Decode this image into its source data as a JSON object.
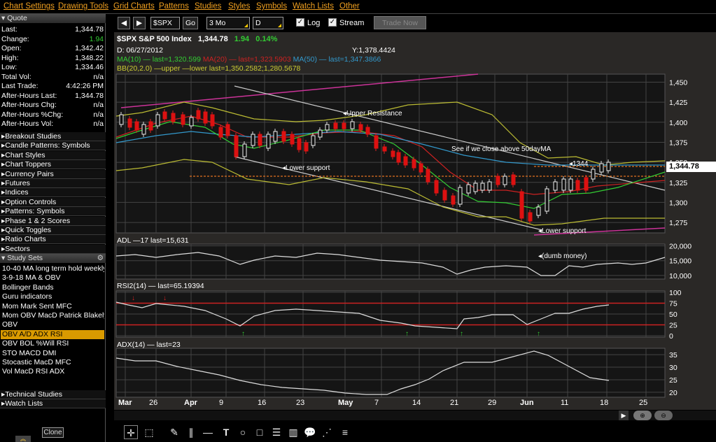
{
  "menu": [
    "Chart Settings",
    "Drawing Tools",
    "Grid Charts",
    "Patterns",
    "Studies",
    "Styles",
    "Symbols",
    "Watch Lists",
    "Other"
  ],
  "quote": {
    "header": "Quote",
    "rows": [
      {
        "label": "Last:",
        "value": "1,344.78"
      },
      {
        "label": "Change:",
        "value": "1.94"
      },
      {
        "label": "Open:",
        "value": "1,342.42"
      },
      {
        "label": "High:",
        "value": "1,348.22"
      },
      {
        "label": "Low:",
        "value": "1,334.46"
      },
      {
        "label": "Total Vol:",
        "value": "n/a"
      },
      {
        "label": "Last Trade:",
        "value": "4:42:26 PM"
      },
      {
        "label": "After-Hours Last:",
        "value": "1,344.78"
      },
      {
        "label": "After-Hours Chg:",
        "value": "n/a"
      },
      {
        "label": "After-Hours %Chg:",
        "value": "n/a"
      },
      {
        "label": "After-Hours Vol:",
        "value": "n/a"
      }
    ],
    "change_color": "#33cc33"
  },
  "collapsed_sections": [
    "Breakout Studies",
    "Candle Patterns: Symbols",
    "Chart Styles",
    "Chart Toppers",
    "Currency Pairs",
    "Futures",
    "Indices",
    "Option Controls",
    "Patterns: Symbols",
    "Phase 1 & 2 Scores",
    "Quick Toggles",
    "Ratio Charts",
    "Sectors"
  ],
  "study_sets": {
    "header": "Study Sets",
    "items": [
      "10-40 MA long term hold weekly",
      "3-9-18 MA & OBV",
      "Bollinger Bands",
      "Guru indicators",
      "Mom Mark Sent MFC",
      "Mom OBV MacD Patrick Blakely",
      "OBV",
      "OBV  A/D ADX RSI",
      "OBV BOL %Will  RSI",
      "STO MACD DMI",
      "Stocastic MacD MFC",
      "Vol MacD RSI ADX"
    ],
    "selected_index": 7
  },
  "bottom_sections": [
    "Technical Studies",
    "Watch Lists"
  ],
  "clone_label": "Clone",
  "toolbar": {
    "symbol": "$SPX",
    "go_label": "Go",
    "period": "3 Mo",
    "interval": "D",
    "log_label": "Log",
    "stream_label": "Stream",
    "trade_label": "Trade Now"
  },
  "chart_header": {
    "symbol": "$SPX S&P 500 Index",
    "last": "1,344.78",
    "change": "1.94",
    "pct": "0.14%",
    "date_line": "D: 06/27/2012",
    "y_line": "Y:1,378.4424",
    "ma10": "MA(10) — last=1,320.599",
    "ma20": "MA(20) — last=1,323.5903",
    "ma50": "MA(50) — last=1,347.3866",
    "bb": "BB(20,2.0) —upper —lower last=1,350.2582;1,280.5678"
  },
  "annotations": {
    "upper_resistance": "Upper Resistance",
    "lower_support_1": "Lower support",
    "lower_support_2": "Lower support",
    "close_above": "See if we close above 50dayMA",
    "level_label": "1344",
    "dumb_money": "(dumb money)"
  },
  "price_axis": {
    "ticks": [
      "1,450",
      "1,425",
      "1,400",
      "1,375",
      "1,350",
      "1,325",
      "1,300",
      "1,275"
    ],
    "current": "1,344.78"
  },
  "adl": {
    "label": "ADL —17 last=15,631",
    "ticks": [
      "20,000",
      "15,000",
      "10,000"
    ]
  },
  "rsi": {
    "label": "RSI2(14) — last=65.19394",
    "ticks": [
      "100",
      "75",
      "50",
      "25",
      "0"
    ]
  },
  "adx": {
    "label": "ADX(14) — last=23",
    "ticks": [
      "35",
      "30",
      "25",
      "20"
    ]
  },
  "date_axis": [
    "Mar",
    "26",
    "Apr",
    "9",
    "16",
    "23",
    "May",
    "7",
    "14",
    "21",
    "29",
    "Jun",
    "11",
    "18",
    "25"
  ],
  "colors": {
    "accent": "#f0a020",
    "up": "#ffffff",
    "down": "#dd1111",
    "ma10": "#33cc33",
    "ma20": "#cc2222",
    "ma50": "#3399cc",
    "bb": "#cccc33"
  }
}
